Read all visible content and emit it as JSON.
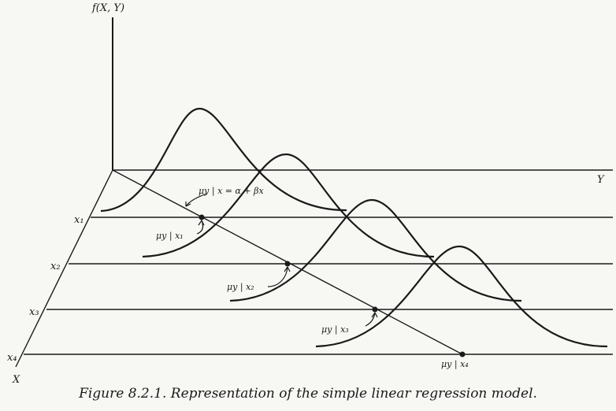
{
  "labels": {
    "vertical_axis": "f(X, Y)",
    "y_axis": "Y",
    "x_axis": "X",
    "x1": "x₁",
    "x2": "x₂",
    "x3": "x₃",
    "x4": "x₄",
    "regression_eq": "μy | x = α + βx",
    "mu1": "μy | x₁",
    "mu2": "μy | x₂",
    "mu3": "μy | x₃",
    "mu4": "μy | x₄"
  },
  "caption": "Figure 8.2.1.  Representation of the simple linear regression model.",
  "colors": {
    "ink": "#1a1a1a",
    "paper": "#f7f7f4"
  }
}
